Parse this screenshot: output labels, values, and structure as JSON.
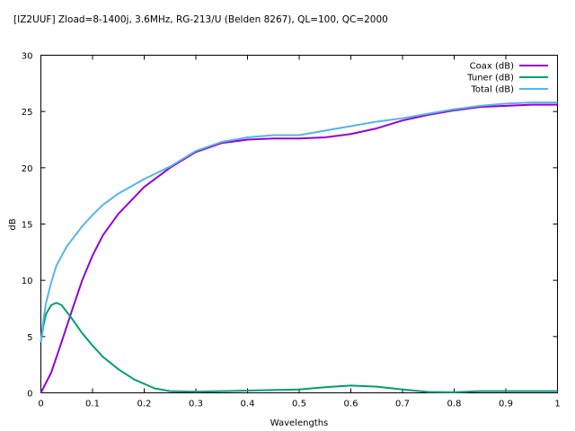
{
  "chart_data": {
    "type": "line",
    "title": "[IZ2UUF] Zload=8-1400j, 3.6MHz, RG-213/U (Belden 8267), QL=100, QC=2000",
    "xlabel": "Wavelengths",
    "ylabel": "dB",
    "xlim": [
      0,
      1
    ],
    "ylim": [
      0,
      30
    ],
    "xticks": [
      0,
      0.1,
      0.2,
      0.3,
      0.4,
      0.5,
      0.6,
      0.7,
      0.8,
      0.9,
      1
    ],
    "xtick_labels": [
      "0",
      "0.1",
      "0.2",
      "0.3",
      "0.4",
      "0.5",
      "0.6",
      "0.7",
      "0.8",
      "0.9",
      "1"
    ],
    "yticks": [
      0,
      5,
      10,
      15,
      20,
      25,
      30
    ],
    "ytick_labels": [
      "0",
      "5",
      "10",
      "15",
      "20",
      "25",
      "30"
    ],
    "grid": false,
    "legend": "top-right",
    "series": [
      {
        "name": "Coax (dB)",
        "color": "#9400d3",
        "points": [
          [
            0,
            0
          ],
          [
            0.02,
            1.8
          ],
          [
            0.04,
            4.5
          ],
          [
            0.06,
            7.3
          ],
          [
            0.08,
            10
          ],
          [
            0.1,
            12.2
          ],
          [
            0.12,
            14
          ],
          [
            0.15,
            15.9
          ],
          [
            0.2,
            18.3
          ],
          [
            0.25,
            20
          ],
          [
            0.3,
            21.4
          ],
          [
            0.35,
            22.2
          ],
          [
            0.4,
            22.5
          ],
          [
            0.45,
            22.6
          ],
          [
            0.5,
            22.6
          ],
          [
            0.55,
            22.7
          ],
          [
            0.6,
            23
          ],
          [
            0.65,
            23.5
          ],
          [
            0.7,
            24.2
          ],
          [
            0.75,
            24.7
          ],
          [
            0.8,
            25.1
          ],
          [
            0.85,
            25.4
          ],
          [
            0.9,
            25.5
          ],
          [
            0.95,
            25.6
          ],
          [
            1,
            25.6
          ]
        ]
      },
      {
        "name": "Tuner (dB)",
        "color": "#009e73",
        "points": [
          [
            0,
            4.5
          ],
          [
            0.005,
            6
          ],
          [
            0.01,
            7
          ],
          [
            0.02,
            7.8
          ],
          [
            0.03,
            8
          ],
          [
            0.04,
            7.8
          ],
          [
            0.06,
            6.6
          ],
          [
            0.08,
            5.3
          ],
          [
            0.1,
            4.2
          ],
          [
            0.12,
            3.2
          ],
          [
            0.15,
            2.1
          ],
          [
            0.18,
            1.2
          ],
          [
            0.2,
            0.8
          ],
          [
            0.22,
            0.4
          ],
          [
            0.25,
            0.15
          ],
          [
            0.3,
            0.1
          ],
          [
            0.35,
            0.15
          ],
          [
            0.4,
            0.2
          ],
          [
            0.45,
            0.25
          ],
          [
            0.5,
            0.3
          ],
          [
            0.55,
            0.5
          ],
          [
            0.6,
            0.65
          ],
          [
            0.65,
            0.55
          ],
          [
            0.7,
            0.3
          ],
          [
            0.75,
            0.08
          ],
          [
            0.8,
            0.05
          ],
          [
            0.85,
            0.15
          ],
          [
            0.9,
            0.15
          ],
          [
            0.95,
            0.15
          ],
          [
            1,
            0.15
          ]
        ]
      },
      {
        "name": "Total (dB)",
        "color": "#56b4e9",
        "points": [
          [
            0,
            4.5
          ],
          [
            0.005,
            6.5
          ],
          [
            0.01,
            8
          ],
          [
            0.02,
            9.8
          ],
          [
            0.03,
            11.3
          ],
          [
            0.05,
            13
          ],
          [
            0.08,
            14.8
          ],
          [
            0.1,
            15.8
          ],
          [
            0.12,
            16.7
          ],
          [
            0.15,
            17.7
          ],
          [
            0.2,
            19
          ],
          [
            0.25,
            20.1
          ],
          [
            0.3,
            21.5
          ],
          [
            0.35,
            22.3
          ],
          [
            0.4,
            22.7
          ],
          [
            0.45,
            22.9
          ],
          [
            0.5,
            22.9
          ],
          [
            0.55,
            23.3
          ],
          [
            0.6,
            23.7
          ],
          [
            0.65,
            24.1
          ],
          [
            0.7,
            24.4
          ],
          [
            0.75,
            24.8
          ],
          [
            0.8,
            25.2
          ],
          [
            0.85,
            25.5
          ],
          [
            0.9,
            25.7
          ],
          [
            0.95,
            25.8
          ],
          [
            1,
            25.8
          ]
        ]
      }
    ]
  }
}
